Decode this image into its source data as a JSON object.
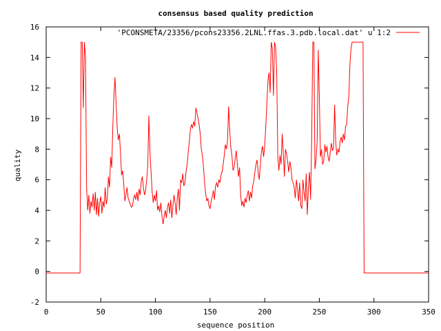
{
  "chart_data": {
    "type": "line",
    "title": "consensus based quality prediction",
    "xlabel": "sequence position",
    "ylabel": "quality",
    "xlim": [
      0,
      350
    ],
    "ylim": [
      -2,
      16
    ],
    "xticks": [
      0,
      50,
      100,
      150,
      200,
      250,
      300,
      350
    ],
    "yticks": [
      -2,
      0,
      2,
      4,
      6,
      8,
      10,
      12,
      14,
      16
    ],
    "grid": false,
    "legend_position": "top-right",
    "series": [
      {
        "name": "'PCONSMETA/23356/pcons23356.2LNL.ffas.3.pdb.local.dat' u 1:2",
        "color": "#ff0000",
        "points": [
          [
            0,
            -0.1
          ],
          [
            31,
            -0.1
          ],
          [
            32,
            15
          ],
          [
            33,
            15
          ],
          [
            34,
            10.7
          ],
          [
            35,
            15
          ],
          [
            36,
            14
          ],
          [
            37,
            5.5
          ],
          [
            38,
            4.0
          ],
          [
            39,
            5.0
          ],
          [
            40,
            3.8
          ],
          [
            41,
            4.6
          ],
          [
            42,
            4.2
          ],
          [
            43,
            5.1
          ],
          [
            44,
            4.0
          ],
          [
            45,
            5.2
          ],
          [
            46,
            3.7
          ],
          [
            47,
            4.8
          ],
          [
            48,
            3.6
          ],
          [
            49,
            4.5
          ],
          [
            50,
            4.9
          ],
          [
            51,
            3.8
          ],
          [
            52,
            4.6
          ],
          [
            53,
            4.2
          ],
          [
            54,
            5.5
          ],
          [
            55,
            4.4
          ],
          [
            56,
            4.8
          ],
          [
            57,
            6.2
          ],
          [
            58,
            5.5
          ],
          [
            59,
            7.5
          ],
          [
            60,
            6.8
          ],
          [
            61,
            9.5
          ],
          [
            62,
            11.5
          ],
          [
            63,
            12.7
          ],
          [
            64,
            11.0
          ],
          [
            65,
            9.4
          ],
          [
            66,
            8.6
          ],
          [
            67,
            9.0
          ],
          [
            68,
            7.8
          ],
          [
            69,
            6.3
          ],
          [
            70,
            6.6
          ],
          [
            71,
            5.7
          ],
          [
            72,
            4.6
          ],
          [
            73,
            5.0
          ],
          [
            74,
            5.5
          ],
          [
            75,
            4.8
          ],
          [
            76,
            4.6
          ],
          [
            77,
            4.4
          ],
          [
            78,
            4.2
          ],
          [
            79,
            4.3
          ],
          [
            80,
            4.8
          ],
          [
            81,
            5.0
          ],
          [
            82,
            4.7
          ],
          [
            83,
            5.2
          ],
          [
            84,
            4.6
          ],
          [
            85,
            5.4
          ],
          [
            86,
            5.0
          ],
          [
            87,
            5.9
          ],
          [
            88,
            6.2
          ],
          [
            89,
            5.5
          ],
          [
            90,
            5.0
          ],
          [
            91,
            5.3
          ],
          [
            92,
            6.0
          ],
          [
            93,
            7.0
          ],
          [
            94,
            10.2
          ],
          [
            95,
            7.8
          ],
          [
            96,
            6.5
          ],
          [
            97,
            5.2
          ],
          [
            98,
            4.5
          ],
          [
            99,
            5.0
          ],
          [
            100,
            4.6
          ],
          [
            101,
            5.3
          ],
          [
            102,
            4.0
          ],
          [
            103,
            4.3
          ],
          [
            104,
            3.9
          ],
          [
            105,
            4.5
          ],
          [
            106,
            3.6
          ],
          [
            107,
            3.1
          ],
          [
            108,
            3.6
          ],
          [
            109,
            4.0
          ],
          [
            110,
            3.5
          ],
          [
            111,
            4.2
          ],
          [
            112,
            4.5
          ],
          [
            113,
            3.8
          ],
          [
            114,
            4.7
          ],
          [
            115,
            3.5
          ],
          [
            116,
            4.3
          ],
          [
            117,
            5.0
          ],
          [
            118,
            4.5
          ],
          [
            119,
            3.7
          ],
          [
            120,
            4.8
          ],
          [
            121,
            5.4
          ],
          [
            122,
            4.0
          ],
          [
            123,
            6.0
          ],
          [
            124,
            5.8
          ],
          [
            125,
            6.4
          ],
          [
            126,
            5.6
          ],
          [
            127,
            5.8
          ],
          [
            128,
            6.5
          ],
          [
            129,
            7.0
          ],
          [
            130,
            7.8
          ],
          [
            131,
            8.5
          ],
          [
            132,
            9.3
          ],
          [
            133,
            9.6
          ],
          [
            134,
            9.4
          ],
          [
            135,
            9.8
          ],
          [
            136,
            9.5
          ],
          [
            137,
            10.7
          ],
          [
            138,
            10.4
          ],
          [
            139,
            10.0
          ],
          [
            140,
            9.6
          ],
          [
            141,
            9.0
          ],
          [
            142,
            8.0
          ],
          [
            143,
            7.6
          ],
          [
            144,
            6.8
          ],
          [
            145,
            5.8
          ],
          [
            146,
            5.1
          ],
          [
            147,
            4.6
          ],
          [
            148,
            4.8
          ],
          [
            149,
            4.3
          ],
          [
            150,
            4.1
          ],
          [
            151,
            4.6
          ],
          [
            152,
            4.9
          ],
          [
            153,
            5.3
          ],
          [
            154,
            4.7
          ],
          [
            155,
            5.6
          ],
          [
            156,
            5.8
          ],
          [
            157,
            5.5
          ],
          [
            158,
            6.0
          ],
          [
            159,
            5.8
          ],
          [
            160,
            6.3
          ],
          [
            161,
            6.5
          ],
          [
            162,
            7.0
          ],
          [
            163,
            7.6
          ],
          [
            164,
            8.3
          ],
          [
            165,
            8.0
          ],
          [
            166,
            8.6
          ],
          [
            167,
            10.8
          ],
          [
            168,
            9.2
          ],
          [
            169,
            8.1
          ],
          [
            170,
            7.6
          ],
          [
            171,
            6.6
          ],
          [
            172,
            6.8
          ],
          [
            173,
            7.4
          ],
          [
            174,
            7.9
          ],
          [
            175,
            7.0
          ],
          [
            176,
            6.2
          ],
          [
            177,
            6.8
          ],
          [
            178,
            5.0
          ],
          [
            179,
            4.3
          ],
          [
            180,
            4.6
          ],
          [
            181,
            4.2
          ],
          [
            182,
            4.8
          ],
          [
            183,
            4.5
          ],
          [
            184,
            5.0
          ],
          [
            185,
            5.3
          ],
          [
            186,
            4.6
          ],
          [
            187,
            5.2
          ],
          [
            188,
            4.8
          ],
          [
            189,
            5.6
          ],
          [
            190,
            5.9
          ],
          [
            191,
            6.5
          ],
          [
            192,
            7.0
          ],
          [
            193,
            7.3
          ],
          [
            194,
            6.5
          ],
          [
            195,
            6.0
          ],
          [
            196,
            7.0
          ],
          [
            197,
            7.8
          ],
          [
            198,
            8.2
          ],
          [
            199,
            7.5
          ],
          [
            200,
            8.2
          ],
          [
            201,
            9.5
          ],
          [
            202,
            11.0
          ],
          [
            203,
            12.5
          ],
          [
            204,
            13.0
          ],
          [
            205,
            11.7
          ],
          [
            206,
            15
          ],
          [
            207,
            14.6
          ],
          [
            208,
            11.5
          ],
          [
            209,
            15
          ],
          [
            210,
            14.7
          ],
          [
            211,
            13.0
          ],
          [
            212,
            7.5
          ],
          [
            213,
            6.6
          ],
          [
            214,
            7.6
          ],
          [
            215,
            7.0
          ],
          [
            216,
            9.0
          ],
          [
            217,
            7.8
          ],
          [
            218,
            6.2
          ],
          [
            219,
            8.0
          ],
          [
            220,
            7.7
          ],
          [
            221,
            7.2
          ],
          [
            222,
            6.5
          ],
          [
            223,
            7.2
          ],
          [
            224,
            6.8
          ],
          [
            225,
            6.0
          ],
          [
            226,
            5.8
          ],
          [
            227,
            5.5
          ],
          [
            228,
            4.8
          ],
          [
            229,
            6.0
          ],
          [
            230,
            5.4
          ],
          [
            231,
            4.6
          ],
          [
            232,
            5.8
          ],
          [
            233,
            4.3
          ],
          [
            234,
            4.1
          ],
          [
            235,
            6.0
          ],
          [
            236,
            5.2
          ],
          [
            237,
            4.6
          ],
          [
            238,
            6.4
          ],
          [
            239,
            3.7
          ],
          [
            240,
            5.5
          ],
          [
            241,
            6.5
          ],
          [
            242,
            4.7
          ],
          [
            243,
            8.7
          ],
          [
            244,
            15
          ],
          [
            245,
            15
          ],
          [
            246,
            6.7
          ],
          [
            247,
            7.3
          ],
          [
            248,
            8.5
          ],
          [
            249,
            14.5
          ],
          [
            250,
            11.5
          ],
          [
            251,
            7.5
          ],
          [
            252,
            8.0
          ],
          [
            253,
            7.0
          ],
          [
            254,
            7.2
          ],
          [
            255,
            8.3
          ],
          [
            256,
            7.8
          ],
          [
            257,
            8.2
          ],
          [
            258,
            7.5
          ],
          [
            259,
            7.2
          ],
          [
            260,
            7.8
          ],
          [
            261,
            8.4
          ],
          [
            262,
            7.9
          ],
          [
            263,
            8.1
          ],
          [
            264,
            10.9
          ],
          [
            265,
            8.5
          ],
          [
            266,
            7.6
          ],
          [
            267,
            8.0
          ],
          [
            268,
            7.8
          ],
          [
            269,
            8.5
          ],
          [
            270,
            8.8
          ],
          [
            271,
            8.4
          ],
          [
            272,
            9.0
          ],
          [
            273,
            8.6
          ],
          [
            274,
            9.5
          ],
          [
            275,
            9.6
          ],
          [
            276,
            10.8
          ],
          [
            277,
            11.5
          ],
          [
            278,
            13.5
          ],
          [
            279,
            14.6
          ],
          [
            280,
            15
          ],
          [
            281,
            15
          ],
          [
            282,
            15
          ],
          [
            283,
            15
          ],
          [
            284,
            15
          ],
          [
            285,
            15
          ],
          [
            286,
            15
          ],
          [
            287,
            15
          ],
          [
            288,
            15
          ],
          [
            289,
            15
          ],
          [
            290,
            15
          ],
          [
            291,
            -0.1
          ],
          [
            350,
            -0.1
          ]
        ]
      }
    ]
  }
}
